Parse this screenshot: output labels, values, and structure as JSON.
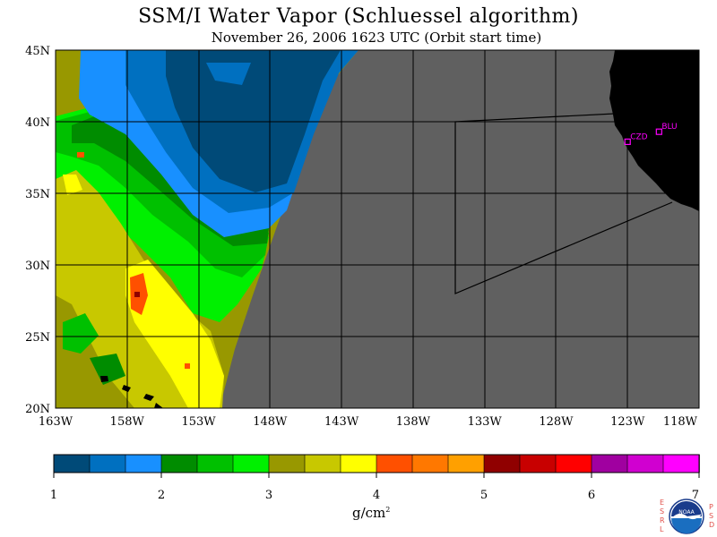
{
  "header": {
    "title": "SSM/I Water Vapor (Schluessel algorithm)",
    "subtitle": "November 26, 2006  1623 UTC  (Orbit start time)"
  },
  "map": {
    "latitude_labels": [
      "45N",
      "40N",
      "35N",
      "30N",
      "25N",
      "20N"
    ],
    "longitude_labels": [
      "163W",
      "158W",
      "153W",
      "148W",
      "143W",
      "138W",
      "133W",
      "128W",
      "123W",
      "118W"
    ],
    "extent": {
      "lon_min": -163,
      "lon_max": -118,
      "lat_min": 20,
      "lat_max": 45
    },
    "stations": [
      {
        "id": "CZD",
        "lon": -123.0,
        "lat": 38.6
      },
      {
        "id": "BLU",
        "lon": -120.8,
        "lat": 39.3
      }
    ],
    "no_data_color": "#606060",
    "land_color": "#000000",
    "station_color": "#ff00ff"
  },
  "colorbar": {
    "tick_labels": [
      "1",
      "2",
      "3",
      "4",
      "5",
      "6",
      "7"
    ],
    "units_base": "g/cm",
    "units_exp": "2",
    "colors": [
      "#004a78",
      "#0070c0",
      "#1890ff",
      "#008c00",
      "#00c000",
      "#00f000",
      "#989800",
      "#c8c800",
      "#ffff00",
      "#ff5000",
      "#ff7800",
      "#ffa000",
      "#900000",
      "#c80000",
      "#ff0000",
      "#a000a0",
      "#d000d0",
      "#ff00ff"
    ]
  },
  "logo": {
    "name": "noaa-logo",
    "side_left": [
      "E",
      "S",
      "R",
      "L"
    ],
    "side_right": [
      "P",
      "S",
      "D"
    ],
    "text": "NOAA"
  }
}
